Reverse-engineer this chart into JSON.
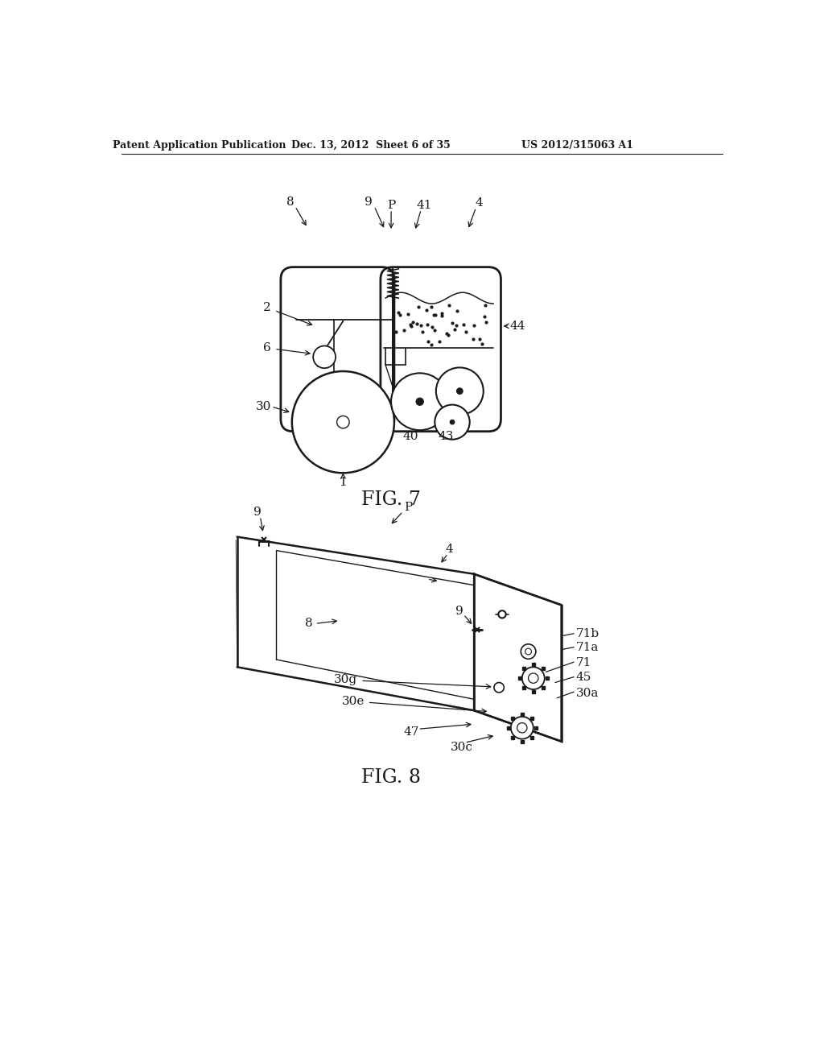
{
  "background_color": "#ffffff",
  "header_text": "Patent Application Publication",
  "header_date": "Dec. 13, 2012  Sheet 6 of 35",
  "header_patent": "US 2012/315063 A1",
  "fig7_label": "FIG. 7",
  "fig8_label": "FIG. 8",
  "line_color": "#1a1a1a",
  "text_color": "#1a1a1a",
  "font_size_header": 9,
  "font_size_ref": 11,
  "font_size_fig": 17
}
